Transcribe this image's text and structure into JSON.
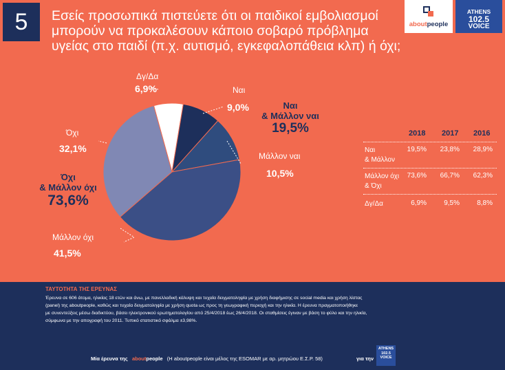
{
  "number": "5",
  "question": "Εσείς προσωπικά πιστεύετε ότι οι παιδικοί εμβολιασμοί μπορούν να προκαλέσουν κάποιο σοβαρό πρόβλημα υγείας στο παιδί (π.χ. αυτισμό, εγκεφαλοπάθεια κλπ) ή όχι;",
  "logos": {
    "aboutpeople_a": "about",
    "aboutpeople_b": "people",
    "av1": "ATHENS",
    "av2": "102.5",
    "av3": "VOICE"
  },
  "chart_data": {
    "type": "pie",
    "slices": [
      {
        "label": "Δγ/Δα",
        "value": 6.9,
        "pct": "6,9%",
        "color": "#ffffff"
      },
      {
        "label": "Ναι",
        "value": 9.0,
        "pct": "9,0%",
        "color": "#1d2f5b"
      },
      {
        "label": "Μάλλον ναι",
        "value": 10.5,
        "pct": "10,5%",
        "color": "#2f4c7e"
      },
      {
        "label": "Μάλλον όχι",
        "value": 41.5,
        "pct": "41,5%",
        "color": "#3b4f86"
      },
      {
        "label": "Όχι",
        "value": 32.1,
        "pct": "32,1%",
        "color": "#8088b4"
      }
    ],
    "groups": {
      "yes_title_1": "Ναι",
      "yes_title_2": "& Μάλλον ναι",
      "yes_value": "19,5%",
      "no_title_1": "Όχι",
      "no_title_2": "& Μάλλον όχι",
      "no_value": "73,6%"
    }
  },
  "table": {
    "years": [
      "2018",
      "2017",
      "2016"
    ],
    "rows": [
      {
        "label1": "Ναι",
        "label2": "& Μάλλον",
        "values": [
          "19,5%",
          "23,8%",
          "28,9%"
        ]
      },
      {
        "label1": "Μάλλον όχι",
        "label2": "& Όχι",
        "values": [
          "73,6%",
          "66,7%",
          "62,3%"
        ]
      },
      {
        "label1": "Δγ/Δα",
        "label2": "",
        "values": [
          "6,9%",
          "9,5%",
          "8,8%"
        ]
      }
    ]
  },
  "survey": {
    "title": "ΤΑΥΤΟΤΗΤΑ ΤΗΣ ΕΡΕΥΝΑΣ",
    "line1": "Έρευνα σε 606 άτομα, ηλικίας 18 ετών και άνω, με πανελλαδική κάλυψη και τυχαία δειγματοληψία με χρήση διαφήμισης σε social media και χρήση λίστας",
    "line2": "(panel) της aboutpeople, καθώς και τυχαία δειγματοληψία με χρήση quota ως προς τη γεωγραφική περιοχή και την ηλικία. Η έρευνα πραγματοποιήθηκε",
    "line3": "με συνεντεύξεις μέσω διαδικτύου, βάσει ηλεκτρονικού ερωτηματολογίου από 25/4/2018 έως 26/4/2018. Οι σταθμίσεις έγιναν με βάση το φύλο και την ηλικία,",
    "line4": "σύμφωνα με την απογραφή του 2011. Τυπικό στατιστικό σφάλμα ±3,98%.",
    "foot_a": "Μία έρευνα της",
    "foot_b1": "about",
    "foot_b2": "people",
    "foot_c": "(Η aboutpeople είναι μέλος της ESOMAR με αρ. μητρώου Ε.Σ.Ρ. 58)",
    "foot_d": "για την",
    "foot_logo1": "ATHENS",
    "foot_logo2": "102.5",
    "foot_logo3": "VOICE"
  }
}
